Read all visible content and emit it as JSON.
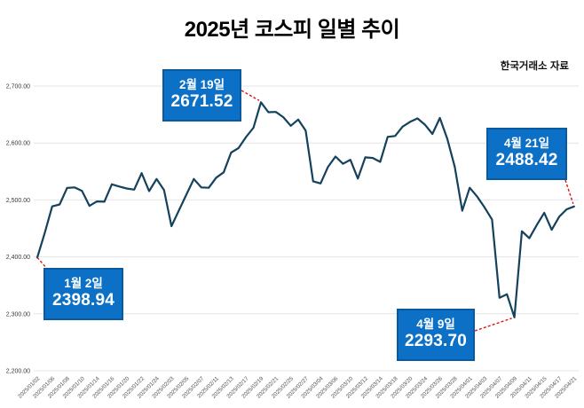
{
  "title": "2025년 코스피 일별 추이",
  "source": "한국거래소 자료",
  "chart_data": {
    "type": "line",
    "series_name": "KOSPI close",
    "x": [
      "2025/01/02",
      "2025/01/03",
      "2025/01/06",
      "2025/01/07",
      "2025/01/08",
      "2025/01/09",
      "2025/01/10",
      "2025/01/13",
      "2025/01/14",
      "2025/01/15",
      "2025/01/16",
      "2025/01/17",
      "2025/01/20",
      "2025/01/21",
      "2025/01/22",
      "2025/01/23",
      "2025/01/24",
      "2025/01/31",
      "2025/02/03",
      "2025/02/04",
      "2025/02/05",
      "2025/02/06",
      "2025/02/07",
      "2025/02/10",
      "2025/02/11",
      "2025/02/12",
      "2025/02/13",
      "2025/02/14",
      "2025/02/17",
      "2025/02/18",
      "2025/02/19",
      "2025/02/20",
      "2025/02/21",
      "2025/02/24",
      "2025/02/25",
      "2025/02/26",
      "2025/02/27",
      "2025/02/28",
      "2025/03/04",
      "2025/03/05",
      "2025/03/06",
      "2025/03/07",
      "2025/03/10",
      "2025/03/11",
      "2025/03/12",
      "2025/03/13",
      "2025/03/14",
      "2025/03/17",
      "2025/03/18",
      "2025/03/19",
      "2025/03/20",
      "2025/03/21",
      "2025/03/24",
      "2025/03/25",
      "2025/03/26",
      "2025/03/27",
      "2025/03/28",
      "2025/03/31",
      "2025/04/01",
      "2025/04/02",
      "2025/04/03",
      "2025/04/04",
      "2025/04/07",
      "2025/04/08",
      "2025/04/09",
      "2025/04/10",
      "2025/04/11",
      "2025/04/14",
      "2025/04/15",
      "2025/04/16",
      "2025/04/17",
      "2025/04/18",
      "2025/04/21"
    ],
    "values": [
      2398.94,
      2441.92,
      2488.64,
      2492.1,
      2521.05,
      2521.9,
      2515.78,
      2489.56,
      2497.4,
      2496.81,
      2527.49,
      2523.55,
      2520.05,
      2518.03,
      2547.06,
      2515.49,
      2536.8,
      2517.37,
      2453.95,
      2481.69,
      2509.27,
      2536.75,
      2521.92,
      2521.27,
      2539.05,
      2548.39,
      2583.17,
      2591.05,
      2610.42,
      2626.81,
      2671.52,
      2654.06,
      2654.58,
      2645.27,
      2630.29,
      2641.09,
      2621.74,
      2532.78,
      2528.92,
      2558.13,
      2576.16,
      2563.48,
      2570.39,
      2537.6,
      2574.82,
      2573.64,
      2566.78,
      2610.69,
      2612.34,
      2628.62,
      2637.1,
      2643.13,
      2632.07,
      2615.81,
      2643.94,
      2607.15,
      2557.98,
      2481.12,
      2521.39,
      2505.86,
      2486.7,
      2465.42,
      2328.2,
      2334.23,
      2293.7,
      2445.06,
      2432.72,
      2455.89,
      2477.41,
      2447.43,
      2470.41,
      2483.42,
      2488.42
    ],
    "xtick_every": 2,
    "ylim": [
      2200,
      2700
    ],
    "ytick_labels": [
      "2,200.00",
      "2,300.00",
      "2,400.00",
      "2,500.00",
      "2,600.00",
      "2,700.00"
    ],
    "grid": true,
    "legend": "none",
    "line_color": "#14415c",
    "grid_color": "#e4e4e4",
    "xtick_color": "#555555",
    "ytick_color": "#3a3a3a",
    "annotation_fill": "#0c70c6",
    "annotation_border": "#0a5aa0",
    "callout_color": "#e01212",
    "annotations": [
      {
        "index": 0,
        "label": "1월 2일",
        "value": "2398.94"
      },
      {
        "index": 30,
        "label": "2월 19일",
        "value": "2671.52"
      },
      {
        "index": 64,
        "label": "4월 9일",
        "value": "2293.70"
      },
      {
        "index": 72,
        "label": "4월 21일",
        "value": "2488.42"
      }
    ]
  }
}
